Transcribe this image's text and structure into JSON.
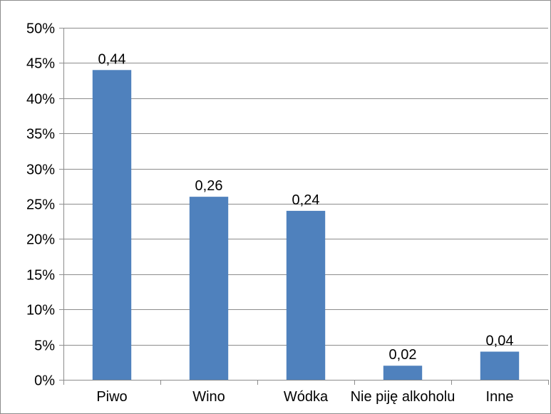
{
  "chart_data": {
    "type": "bar",
    "categories": [
      "Piwo",
      "Wino",
      "Wódka",
      "Nie piję alkoholu",
      "Inne"
    ],
    "values": [
      0.44,
      0.26,
      0.24,
      0.02,
      0.04
    ],
    "data_labels": [
      "0,44",
      "0,26",
      "0,24",
      "0,02",
      "0,04"
    ],
    "y_ticks": [
      "0%",
      "5%",
      "10%",
      "15%",
      "20%",
      "25%",
      "30%",
      "35%",
      "40%",
      "45%",
      "50%"
    ],
    "ylim": [
      0,
      0.5
    ],
    "y_step": 0.05,
    "grid": true,
    "legend": "none",
    "title": "",
    "xlabel": "",
    "ylabel": "",
    "colors": {
      "bar": "#4f81bd",
      "grid": "#8c8c8c",
      "axis": "#8c8c8c"
    }
  }
}
